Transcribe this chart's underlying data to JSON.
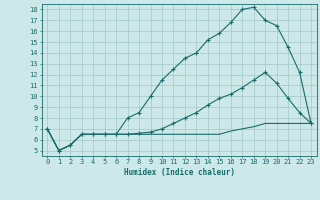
{
  "xlabel": "Humidex (Indice chaleur)",
  "background_color": "#cce8e8",
  "grid_color": "#aacccc",
  "line_color": "#1a6b6b",
  "xlim": [
    -0.5,
    23.5
  ],
  "ylim": [
    4.5,
    18.5
  ],
  "xticks": [
    0,
    1,
    2,
    3,
    4,
    5,
    6,
    7,
    8,
    9,
    10,
    11,
    12,
    13,
    14,
    15,
    16,
    17,
    18,
    19,
    20,
    21,
    22,
    23
  ],
  "yticks": [
    5,
    6,
    7,
    8,
    9,
    10,
    11,
    12,
    13,
    14,
    15,
    16,
    17,
    18
  ],
  "line1_x": [
    0,
    1,
    2,
    3,
    4,
    5,
    6,
    7,
    8,
    9,
    10,
    11,
    12,
    13,
    14,
    15,
    16,
    17,
    18,
    19,
    20,
    21,
    22,
    23
  ],
  "line1_y": [
    7.0,
    5.0,
    5.5,
    6.5,
    6.5,
    6.5,
    6.5,
    8.0,
    8.5,
    10.0,
    11.5,
    12.5,
    13.5,
    14.0,
    15.2,
    15.8,
    16.8,
    18.0,
    18.2,
    17.0,
    16.5,
    14.5,
    12.2,
    7.5
  ],
  "line2_x": [
    0,
    1,
    2,
    3,
    4,
    5,
    6,
    7,
    8,
    9,
    10,
    11,
    12,
    13,
    14,
    15,
    16,
    17,
    18,
    19,
    20,
    21,
    22,
    23
  ],
  "line2_y": [
    7.0,
    5.0,
    5.5,
    6.5,
    6.5,
    6.5,
    6.5,
    6.5,
    6.6,
    6.7,
    7.0,
    7.5,
    8.0,
    8.5,
    9.2,
    9.8,
    10.2,
    10.8,
    11.5,
    12.2,
    11.2,
    9.8,
    8.5,
    7.5
  ],
  "line3_x": [
    0,
    1,
    2,
    3,
    4,
    5,
    6,
    7,
    8,
    9,
    10,
    11,
    12,
    13,
    14,
    15,
    16,
    17,
    18,
    19,
    20,
    21,
    22,
    23
  ],
  "line3_y": [
    7.0,
    5.0,
    5.5,
    6.5,
    6.5,
    6.5,
    6.5,
    6.5,
    6.5,
    6.5,
    6.5,
    6.5,
    6.5,
    6.5,
    6.5,
    6.5,
    6.8,
    7.0,
    7.2,
    7.5,
    7.5,
    7.5,
    7.5,
    7.5
  ]
}
